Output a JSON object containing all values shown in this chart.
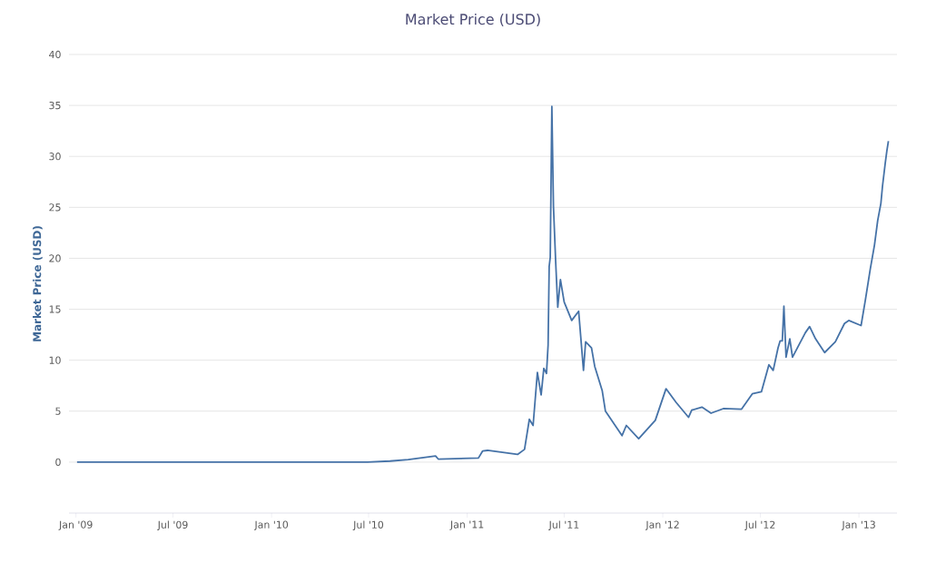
{
  "chart_data": {
    "type": "line",
    "title": "Market Price (USD)",
    "ylabel": "Market Price (USD)",
    "color": "#4572a7",
    "grid": "y",
    "xlim": [
      "2008-12-19",
      "2013-03-13"
    ],
    "ylim": [
      -5,
      40
    ],
    "yticks": [
      0,
      5,
      10,
      15,
      20,
      25,
      30,
      35,
      40
    ],
    "xticks": [
      {
        "value": "2009-01-01",
        "label": "Jan '09"
      },
      {
        "value": "2009-07-01",
        "label": "Jul '09"
      },
      {
        "value": "2010-01-01",
        "label": "Jan '10"
      },
      {
        "value": "2010-07-01",
        "label": "Jul '10"
      },
      {
        "value": "2011-01-01",
        "label": "Jan '11"
      },
      {
        "value": "2011-07-01",
        "label": "Jul '11"
      },
      {
        "value": "2012-01-01",
        "label": "Jan '12"
      },
      {
        "value": "2012-07-01",
        "label": "Jul '12"
      },
      {
        "value": "2013-01-01",
        "label": "Jan '13"
      }
    ],
    "x": [
      "2009-01-03",
      "2010-06-29",
      "2010-08-10",
      "2010-09-13",
      "2010-11-03",
      "2010-11-08",
      "2011-01-22",
      "2011-01-30",
      "2011-02-08",
      "2011-04-05",
      "2011-04-18",
      "2011-04-27",
      "2011-05-04",
      "2011-05-12",
      "2011-05-19",
      "2011-05-24",
      "2011-05-29",
      "2011-06-01",
      "2011-06-03",
      "2011-06-05",
      "2011-06-08",
      "2011-06-11",
      "2011-06-15",
      "2011-06-19",
      "2011-06-24",
      "2011-07-01",
      "2011-07-15",
      "2011-07-28",
      "2011-08-06",
      "2011-08-10",
      "2011-08-21",
      "2011-08-27",
      "2011-09-10",
      "2011-09-16",
      "2011-10-17",
      "2011-10-25",
      "2011-11-17",
      "2011-12-18",
      "2012-01-07",
      "2012-01-26",
      "2012-02-18",
      "2012-02-24",
      "2012-03-14",
      "2012-03-31",
      "2012-04-23",
      "2012-05-27",
      "2012-06-16",
      "2012-07-03",
      "2012-07-17",
      "2012-07-25",
      "2012-08-03",
      "2012-08-07",
      "2012-08-11",
      "2012-08-14",
      "2012-08-18",
      "2012-08-25",
      "2012-08-30",
      "2012-09-23",
      "2012-10-01",
      "2012-10-12",
      "2012-10-29",
      "2012-11-18",
      "2012-12-05",
      "2012-12-13",
      "2013-01-05",
      "2013-01-13",
      "2013-01-22",
      "2013-01-30",
      "2013-02-05",
      "2013-02-11",
      "2013-02-14",
      "2013-02-19",
      "2013-02-22",
      "2013-02-25"
    ],
    "values": [
      0,
      0,
      0.1,
      0.25,
      0.6,
      0.3,
      0.4,
      1.1,
      1.15,
      0.75,
      1.25,
      4.2,
      3.6,
      8.8,
      6.6,
      9.2,
      8.7,
      11.5,
      19.2,
      20.1,
      34.9,
      25.1,
      19.8,
      15.2,
      17.9,
      15.7,
      13.9,
      14.8,
      9.0,
      11.8,
      11.2,
      9.4,
      7.0,
      5.0,
      2.6,
      3.6,
      2.3,
      4.1,
      7.2,
      5.85,
      4.4,
      5.1,
      5.4,
      4.8,
      5.25,
      5.2,
      6.7,
      6.9,
      9.55,
      9.0,
      11.2,
      11.9,
      11.9,
      15.3,
      10.3,
      12.1,
      10.3,
      12.7,
      13.3,
      12.1,
      10.75,
      11.8,
      13.6,
      13.9,
      13.4,
      15.9,
      18.9,
      21.3,
      23.7,
      25.4,
      27.1,
      29.3,
      30.5,
      31.5
    ]
  }
}
